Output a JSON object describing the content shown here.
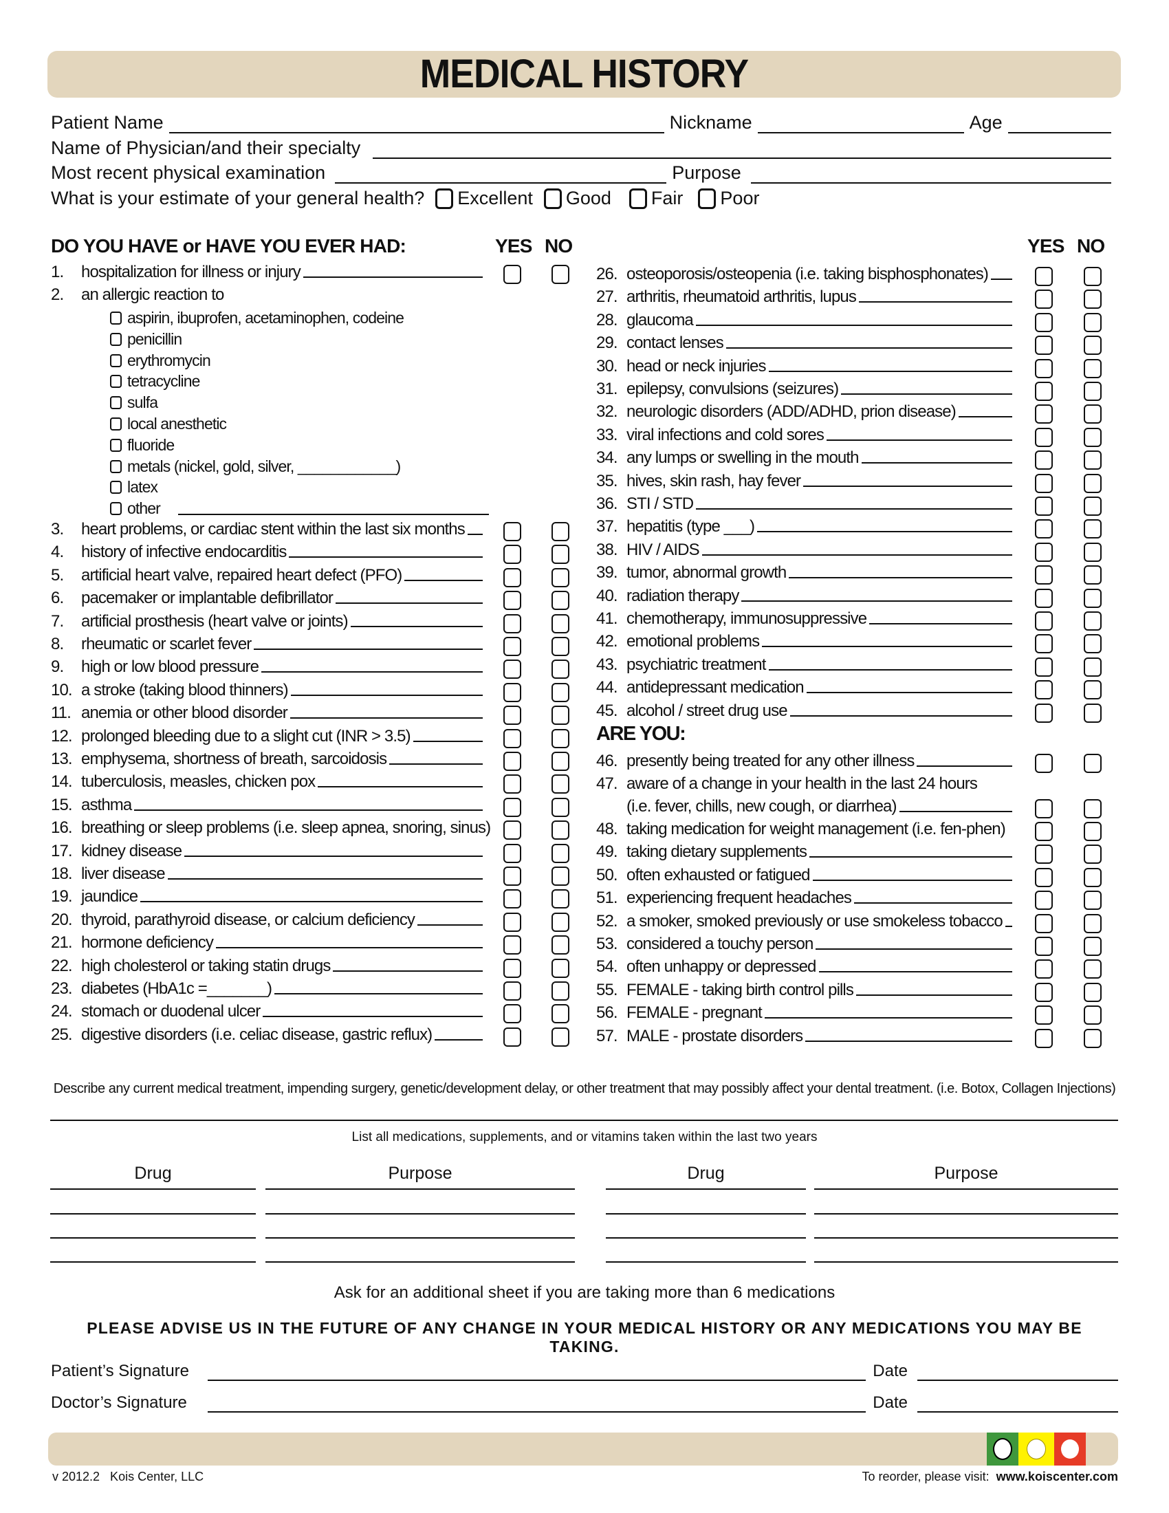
{
  "title": "MEDICAL HISTORY",
  "patient_info": {
    "patient_name_label": "Patient Name",
    "nickname_label": "Nickname",
    "age_label": "Age",
    "physician_label": "Name of Physician/and their specialty",
    "exam_label": "Most recent physical examination",
    "purpose_label": "Purpose",
    "health_question": "What is your estimate of your general health?",
    "health_options": [
      "Excellent",
      "Good",
      "Fair",
      "Poor"
    ]
  },
  "section_heading": "DO YOU HAVE or HAVE YOU EVER HAD:",
  "yes_label": "YES",
  "no_label": "NO",
  "are_you_heading": "ARE YOU:",
  "left_items": [
    {
      "num": "1.",
      "text": "hospitalization for illness or injury",
      "line": true,
      "boxes": true
    },
    {
      "num": "2.",
      "text": "an allergic reaction to",
      "line": false,
      "boxes": false
    },
    {
      "num": "3.",
      "text": "heart problems, or cardiac stent within the last six months",
      "line": true,
      "boxes": true
    },
    {
      "num": "4.",
      "text": "history of infective endocarditis",
      "line": true,
      "boxes": true
    },
    {
      "num": "5.",
      "text": "artificial heart valve, repaired heart defect (PFO)",
      "line": true,
      "boxes": true
    },
    {
      "num": "6.",
      "text": "pacemaker or implantable defibrillator",
      "line": true,
      "boxes": true
    },
    {
      "num": "7.",
      "text": "artificial prosthesis (heart valve or joints)",
      "line": true,
      "boxes": true
    },
    {
      "num": "8.",
      "text": "rheumatic or scarlet fever",
      "line": true,
      "boxes": true
    },
    {
      "num": "9.",
      "text": "high or low blood pressure",
      "line": true,
      "boxes": true
    },
    {
      "num": "10.",
      "text": "a stroke (taking blood thinners)",
      "line": true,
      "boxes": true
    },
    {
      "num": "11.",
      "text": "anemia or other blood disorder",
      "line": true,
      "boxes": true
    },
    {
      "num": "12.",
      "text": "prolonged bleeding due to a slight cut (INR > 3.5)",
      "line": true,
      "boxes": true
    },
    {
      "num": "13.",
      "text": "emphysema, shortness of breath, sarcoidosis",
      "line": true,
      "boxes": true
    },
    {
      "num": "14.",
      "text": "tuberculosis, measles, chicken pox",
      "line": true,
      "boxes": true
    },
    {
      "num": "15.",
      "text": "asthma",
      "line": true,
      "boxes": true
    },
    {
      "num": "16.",
      "text": "breathing or sleep problems (i.e. sleep apnea, snoring, sinus)",
      "line": false,
      "boxes": true
    },
    {
      "num": "17.",
      "text": "kidney disease",
      "line": true,
      "boxes": true
    },
    {
      "num": "18.",
      "text": "liver disease",
      "line": true,
      "boxes": true
    },
    {
      "num": "19.",
      "text": "jaundice",
      "line": true,
      "boxes": true
    },
    {
      "num": "20.",
      "text": "thyroid, parathyroid disease, or calcium deficiency",
      "line": true,
      "boxes": true
    },
    {
      "num": "21.",
      "text": "hormone deficiency",
      "line": true,
      "boxes": true
    },
    {
      "num": "22.",
      "text": "high cholesterol or taking statin drugs",
      "line": true,
      "boxes": true
    },
    {
      "num": "23.",
      "text": "diabetes (HbA1c =_______)",
      "line": true,
      "boxes": true
    },
    {
      "num": "24.",
      "text": "stomach or duodenal ulcer",
      "line": true,
      "boxes": true
    },
    {
      "num": "25.",
      "text": "digestive disorders (i.e.  celiac disease, gastric reflux)",
      "line": true,
      "boxes": true
    }
  ],
  "allergy_options": [
    "aspirin, ibuprofen, acetaminophen, codeine",
    "penicillin",
    "erythromycin",
    "tetracycline",
    "sulfa",
    "local anesthetic",
    "fluoride",
    "metals (nickel, gold, silver, ____________)",
    "latex",
    "other"
  ],
  "right_items": [
    {
      "num": "26.",
      "text": "osteoporosis/osteopenia  (i.e. taking bisphosphonates)",
      "line": true,
      "boxes": true
    },
    {
      "num": "27.",
      "text": "arthritis, rheumatoid arthritis, lupus",
      "line": true,
      "boxes": true
    },
    {
      "num": "28.",
      "text": "glaucoma",
      "line": true,
      "boxes": true
    },
    {
      "num": "29.",
      "text": "contact lenses",
      "line": true,
      "boxes": true
    },
    {
      "num": "30.",
      "text": "head or neck injuries",
      "line": true,
      "boxes": true
    },
    {
      "num": "31.",
      "text": "epilepsy, convulsions (seizures)",
      "line": true,
      "boxes": true
    },
    {
      "num": "32.",
      "text": "neurologic disorders (ADD/ADHD, prion disease)",
      "line": true,
      "boxes": true
    },
    {
      "num": "33.",
      "text": "viral infections and cold sores",
      "line": true,
      "boxes": true
    },
    {
      "num": "34.",
      "text": "any lumps or swelling in the mouth",
      "line": true,
      "boxes": true
    },
    {
      "num": "35.",
      "text": "hives, skin rash, hay fever",
      "line": true,
      "boxes": true
    },
    {
      "num": "36.",
      "text": "STI / STD",
      "line": true,
      "boxes": true
    },
    {
      "num": "37.",
      "text": "hepatitis (type ___)",
      "line": true,
      "boxes": true
    },
    {
      "num": "38.",
      "text": "HIV / AIDS",
      "line": true,
      "boxes": true
    },
    {
      "num": "39.",
      "text": "tumor, abnormal growth",
      "line": true,
      "boxes": true
    },
    {
      "num": "40.",
      "text": "radiation therapy",
      "line": true,
      "boxes": true
    },
    {
      "num": "41.",
      "text": "chemotherapy, immunosuppressive",
      "line": true,
      "boxes": true
    },
    {
      "num": "42.",
      "text": "emotional problems",
      "line": true,
      "boxes": true
    },
    {
      "num": "43.",
      "text": "psychiatric treatment",
      "line": true,
      "boxes": true
    },
    {
      "num": "44.",
      "text": "antidepressant medication",
      "line": true,
      "boxes": true
    },
    {
      "num": "45.",
      "text": "alcohol / street drug use",
      "line": true,
      "boxes": true
    }
  ],
  "are_you_items": [
    {
      "num": "46.",
      "text": "presently being treated for any other illness",
      "line": true,
      "boxes": true
    },
    {
      "num": "47.",
      "text": "aware of a change in your health in the last 24 hours",
      "line": false,
      "boxes": false
    },
    {
      "num": "",
      "text": "(i.e. fever, chills, new cough, or diarrhea)",
      "line": true,
      "boxes": true
    },
    {
      "num": "48.",
      "text": "taking medication for weight management (i.e. fen-phen)",
      "line": false,
      "boxes": true
    },
    {
      "num": "49.",
      "text": "taking dietary supplements",
      "line": true,
      "boxes": true
    },
    {
      "num": "50.",
      "text": "often exhausted or fatigued",
      "line": true,
      "boxes": true
    },
    {
      "num": "51.",
      "text": "experiencing frequent headaches",
      "line": true,
      "boxes": true
    },
    {
      "num": "52.",
      "text": "a smoker, smoked previously or use smokeless tobacco",
      "line": true,
      "boxes": true
    },
    {
      "num": "53.",
      "text": "considered a touchy person",
      "line": true,
      "boxes": true
    },
    {
      "num": "54.",
      "text": "often unhappy or depressed",
      "line": true,
      "boxes": true
    },
    {
      "num": "55.",
      "text": "FEMALE - taking birth control pills",
      "line": true,
      "boxes": true
    },
    {
      "num": "56.",
      "text": "FEMALE - pregnant",
      "line": true,
      "boxes": true
    },
    {
      "num": "57.",
      "text": "MALE - prostate disorders",
      "line": true,
      "boxes": true
    }
  ],
  "describe_text": "Describe any current medical treatment, impending surgery, genetic/development delay, or other treatment that may possibly affect your dental treatment. (i.e. Botox, Collagen Injections)",
  "medications": {
    "intro": "List all medications, supplements, and or vitamins taken within the last two years",
    "headers": [
      "Drug",
      "Purpose",
      "Drug",
      "Purpose"
    ],
    "note": "Ask for an additional sheet if you are taking more than 6 medications"
  },
  "advise_text": "PLEASE ADVISE US IN THE FUTURE OF ANY CHANGE IN YOUR MEDICAL HISTORY OR ANY MEDICATIONS YOU MAY BE TAKING.",
  "signatures": {
    "patient_label": "Patient’s Signature",
    "doctor_label": "Doctor’s Signature",
    "date_label": "Date"
  },
  "footer": {
    "version": "v 2012.2   Kois Center, LLC",
    "reorder_text": "To reorder, please visit:",
    "website": "www.koiscenter.com",
    "bar_color": "#e3d6bd",
    "logo_colors": [
      "#3f973d",
      "#fff200",
      "#e63b26"
    ]
  }
}
